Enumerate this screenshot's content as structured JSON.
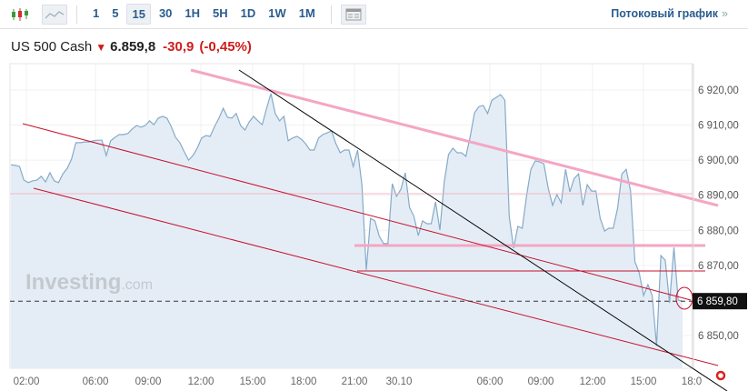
{
  "toolbar": {
    "chart_types": [
      {
        "icon": "candlestick-icon"
      },
      {
        "icon": "area-chart-icon"
      }
    ],
    "timeframes": [
      "1",
      "5",
      "15",
      "30",
      "1H",
      "5H",
      "1D",
      "1W",
      "1M"
    ],
    "active_timeframe": "15",
    "layout_icon": "layout-icon",
    "stream_label": "Потоковый график",
    "stream_chevron": "»"
  },
  "quote": {
    "name": "US 500 Cash",
    "direction": "down",
    "last": "6.859,8",
    "change": "-30,9",
    "change_pct": "(-0,45%)"
  },
  "colors": {
    "line": "#86aac8",
    "fill": "#e4edf6",
    "down": "#d01c1c",
    "link": "#2a5d8f",
    "trend_pink": "#f4a6c4",
    "trend_red": "#c8102e"
  },
  "watermark": {
    "brand": "Investing",
    "suffix": ".com"
  },
  "chart_data": {
    "type": "area",
    "ylim": [
      6845,
      6928
    ],
    "y_ticks": [
      "6 920,00",
      "6 910,00",
      "6 900,00",
      "6 890,00",
      "6 880,00",
      "6 870,00",
      "6 850,00"
    ],
    "y_tick_values": [
      6920,
      6910,
      6900,
      6890,
      6880,
      6870,
      6850
    ],
    "x_ticks": [
      "02:00",
      "06:00",
      "09:00",
      "12:00",
      "15:00",
      "18:00",
      "21:00",
      "30.10",
      "06:00",
      "09:00",
      "12:00",
      "15:00",
      "18:0"
    ],
    "current_price_label": "6 859,80",
    "current_price": 6859.8,
    "grid": true,
    "values": [
      6898.7,
      6898.5,
      6898.2,
      6894.3,
      6893.6,
      6894.1,
      6894.3,
      6895.4,
      6893.8,
      6896.4,
      6894.1,
      6893.6,
      6896.1,
      6897.7,
      6900.3,
      6905.0,
      6905.0,
      6905.2,
      6905.2,
      6905.5,
      6905.7,
      6905.7,
      6901.3,
      6905.5,
      6906.5,
      6907.3,
      6907.3,
      6907.6,
      6908.9,
      6909.9,
      6909.4,
      6909.9,
      6911.2,
      6910.1,
      6912.0,
      6912.5,
      6912.0,
      6909.6,
      6906.5,
      6905.0,
      6902.4,
      6900.0,
      6901.3,
      6903.4,
      6906.3,
      6907.0,
      6906.8,
      6909.6,
      6912.0,
      6914.8,
      6912.2,
      6912.0,
      6913.3,
      6909.9,
      6908.6,
      6910.9,
      6912.5,
      6911.2,
      6910.1,
      6914.8,
      6919.0,
      6913.3,
      6911.2,
      6912.5,
      6905.5,
      6906.3,
      6906.8,
      6906.0,
      6904.7,
      6902.9,
      6902.9,
      6906.3,
      6907.3,
      6907.8,
      6908.3,
      6904.7,
      6902.1,
      6902.9,
      6902.9,
      6898.2,
      6902.9,
      6893.0,
      6868.7,
      6883.4,
      6882.7,
      6878.3,
      6876.2,
      6876.2,
      6893.3,
      6889.7,
      6891.7,
      6896.4,
      6886.5,
      6884.0,
      6878.5,
      6882.7,
      6881.9,
      6881.9,
      6888.1,
      6880.1,
      6893.8,
      6901.6,
      6903.4,
      6902.1,
      6902.1,
      6901.1,
      6906.8,
      6913.5,
      6915.3,
      6915.6,
      6913.3,
      6917.1,
      6917.9,
      6918.7,
      6917.1,
      6884.0,
      6874.9,
      6881.1,
      6880.6,
      6889.9,
      6897.4,
      6899.8,
      6899.5,
      6899.0,
      6892.0,
      6887.1,
      6890.2,
      6887.8,
      6897.4,
      6891.0,
      6894.8,
      6896.1,
      6887.1,
      6893.0,
      6891.2,
      6891.2,
      6883.4,
      6879.8,
      6880.6,
      6880.6,
      6886.3,
      6896.1,
      6897.4,
      6891.2,
      6871.0,
      6867.9,
      6861.4,
      6864.5,
      6861.4,
      6847.1,
      6872.8,
      6871.5,
      6859.3,
      6875.1,
      6860.1,
      6859.8
    ]
  }
}
